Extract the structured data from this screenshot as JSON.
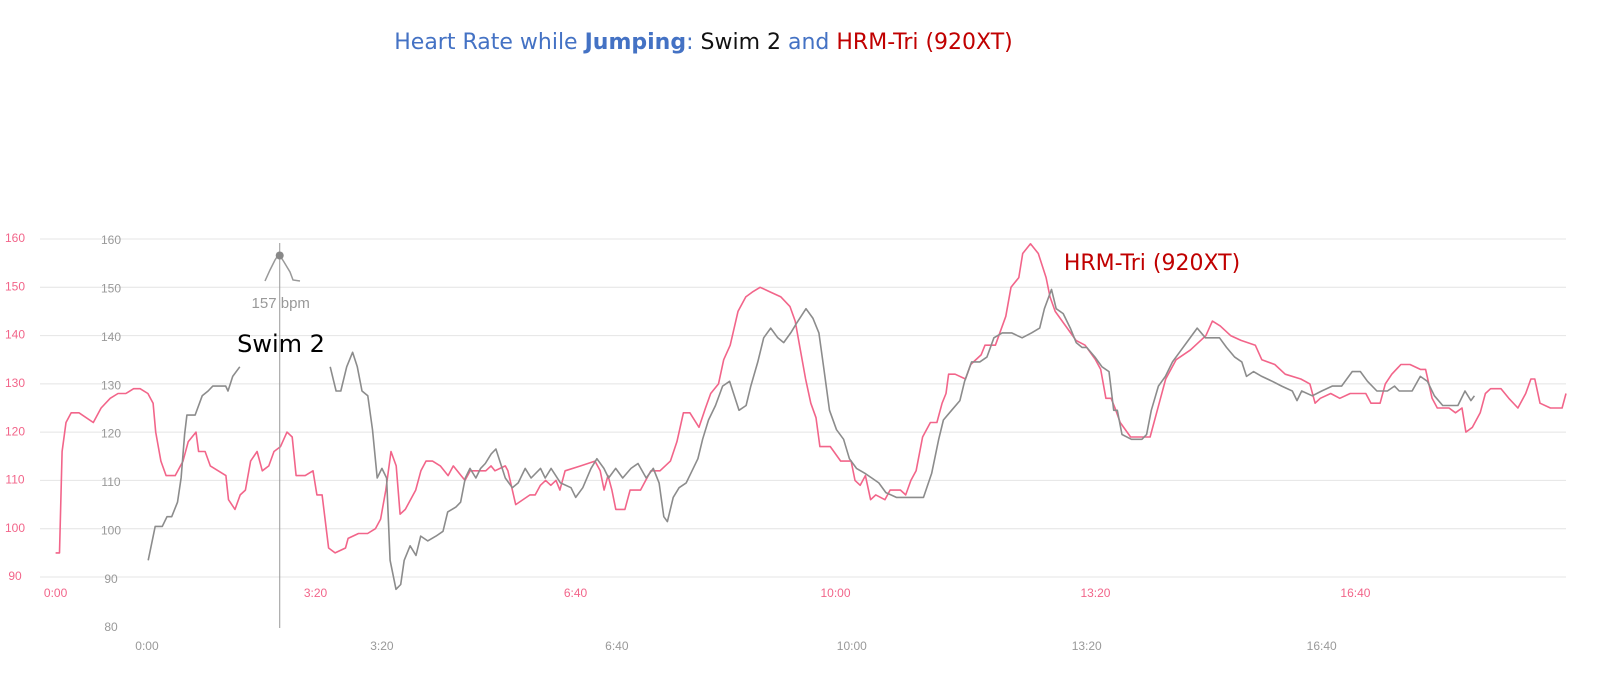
{
  "title": [
    "Heart Rate while",
    "Jumping",
    ":",
    "Swim 2",
    "and",
    "HRM-Tri (920XT)"
  ],
  "chart_data": [
    {
      "type": "line",
      "grid": true,
      "xlim": [
        -12,
        1162
      ],
      "ylim": [
        90,
        160
      ],
      "xticks": [
        {
          "value": 0,
          "label": "0:00"
        },
        {
          "value": 200,
          "label": "3:20"
        },
        {
          "value": 400,
          "label": "6:40"
        },
        {
          "value": 600,
          "label": "10:00"
        },
        {
          "value": 800,
          "label": "13:20"
        },
        {
          "value": 1000,
          "label": "16:40"
        }
      ],
      "yticks": [
        90,
        100,
        110,
        120,
        130,
        140,
        150,
        160
      ],
      "x": [
        0,
        3,
        5,
        8,
        12,
        18,
        29,
        35,
        42,
        48,
        54,
        60,
        65,
        71,
        75,
        77,
        81,
        85,
        92,
        98,
        102,
        108,
        110,
        115,
        119,
        131,
        133,
        138,
        142,
        146,
        150,
        155,
        159,
        164,
        168,
        173,
        178,
        182,
        185,
        192,
        198,
        201,
        205,
        210,
        215,
        223,
        225,
        233,
        240,
        246,
        250,
        254,
        258,
        262,
        265,
        269,
        277,
        281,
        285,
        290,
        296,
        302,
        306,
        312,
        315,
        319,
        325,
        331,
        335,
        338,
        346,
        348,
        354,
        365,
        369,
        373,
        377,
        381,
        385,
        388,
        392,
        404,
        415,
        419,
        422,
        425,
        428,
        431,
        438,
        442,
        450,
        454,
        458,
        462,
        465,
        473,
        478,
        483,
        488,
        495,
        500,
        504,
        510,
        514,
        519,
        525,
        531,
        536,
        542,
        550,
        558,
        565,
        569,
        573,
        577,
        581,
        585,
        588,
        596,
        604,
        612,
        615,
        619,
        623,
        627,
        631,
        638,
        642,
        650,
        654,
        658,
        662,
        667,
        673,
        678,
        682,
        685,
        687,
        692,
        700,
        704,
        712,
        715,
        723,
        727,
        731,
        735,
        741,
        744,
        750,
        756,
        762,
        765,
        769,
        777,
        785,
        792,
        800,
        804,
        808,
        812,
        815,
        819,
        827,
        838,
        842,
        850,
        854,
        862,
        873,
        881,
        885,
        890,
        896,
        904,
        912,
        923,
        928,
        938,
        946,
        958,
        965,
        969,
        973,
        981,
        988,
        996,
        1008,
        1012,
        1019,
        1023,
        1028,
        1035,
        1042,
        1050,
        1054,
        1059,
        1063,
        1072,
        1077,
        1082,
        1085,
        1090,
        1096,
        1100,
        1104,
        1112,
        1118,
        1125,
        1131,
        1135,
        1138,
        1142,
        1150,
        1159,
        1162
      ],
      "series": [
        {
          "name": "HRM-Tri (920XT)",
          "color": "#f2658a",
          "values": [
            95,
            95,
            116,
            122,
            124,
            124,
            122,
            125,
            127,
            128,
            128,
            129,
            129,
            128,
            126,
            120,
            114,
            111,
            111,
            114,
            118,
            120,
            116,
            116,
            113,
            111,
            106,
            104,
            107,
            108,
            114,
            116,
            112,
            113,
            116,
            117,
            120,
            119,
            111,
            111,
            112,
            107,
            107,
            96,
            95,
            96,
            98,
            99,
            99,
            100,
            102,
            108,
            116,
            113,
            103,
            104,
            108,
            112,
            114,
            114,
            113,
            111,
            113,
            111,
            110,
            112,
            112,
            112,
            113,
            112,
            113,
            112,
            105,
            107,
            107,
            109,
            110,
            109,
            110,
            108,
            112,
            113,
            114,
            112,
            108,
            111,
            108,
            104,
            104,
            108,
            108,
            110,
            112,
            112,
            112,
            114,
            118,
            124,
            124,
            121,
            125,
            128,
            130,
            135,
            138,
            145,
            148,
            149,
            150,
            149,
            148,
            146,
            143,
            137,
            131,
            126,
            123,
            117,
            117,
            114,
            114,
            110,
            109,
            111,
            106,
            107,
            106,
            108,
            108,
            107,
            110,
            112,
            119,
            122,
            122,
            126,
            128,
            132,
            132,
            131,
            134,
            136,
            138,
            138,
            141,
            144,
            150,
            152,
            157,
            159,
            157,
            152,
            148,
            145,
            142,
            139,
            138,
            135,
            133,
            127,
            127,
            125,
            122,
            119,
            119,
            119,
            127,
            131,
            135,
            137,
            139,
            140,
            143,
            142,
            140,
            139,
            138,
            135,
            134,
            132,
            131,
            130,
            126,
            127,
            128,
            127,
            128,
            128,
            126,
            126,
            130,
            132,
            134,
            134,
            133,
            133,
            127,
            125,
            125,
            124,
            125,
            120,
            121,
            124,
            128,
            129,
            129,
            127,
            125,
            128,
            131,
            131,
            126,
            125,
            125,
            128
          ]
        }
      ]
    },
    {
      "type": "line",
      "grid": false,
      "xlim": [
        -40,
        1208
      ],
      "ylim": [
        80,
        160
      ],
      "xticks": [
        {
          "value": 0,
          "label": "0:00"
        },
        {
          "value": 200,
          "label": "3:20"
        },
        {
          "value": 400,
          "label": "6:40"
        },
        {
          "value": 600,
          "label": "10:00"
        },
        {
          "value": 800,
          "label": "13:20"
        },
        {
          "value": 1000,
          "label": "16:40"
        }
      ],
      "yticks": [
        80,
        90,
        100,
        110,
        120,
        130,
        140,
        150,
        160
      ],
      "tooltip": {
        "x": 113,
        "value": 157,
        "label": "157 bpm"
      },
      "x": [
        1,
        7,
        13,
        17,
        21,
        26,
        29,
        32,
        34,
        41,
        47,
        52,
        56,
        67,
        69,
        73,
        79,
        117,
        156,
        161,
        165,
        170,
        175,
        179,
        183,
        188,
        192,
        196,
        200,
        204,
        207,
        212,
        216,
        219,
        224,
        229,
        233,
        239,
        246,
        252,
        256,
        263,
        267,
        271,
        275,
        280,
        284,
        288,
        293,
        297,
        301,
        305,
        311,
        316,
        322,
        327,
        335,
        339,
        344,
        352,
        361,
        365,
        371,
        378,
        383,
        389,
        393,
        399,
        405,
        412,
        418,
        425,
        431,
        436,
        440,
        443,
        448,
        453,
        459,
        463,
        469,
        473,
        478,
        484,
        490,
        496,
        500,
        504,
        510,
        514,
        520,
        525,
        531,
        537,
        542,
        548,
        553,
        561,
        567,
        572,
        576,
        581,
        587,
        593,
        598,
        604,
        611,
        617,
        623,
        629,
        638,
        646,
        655,
        661,
        668,
        674,
        678,
        685,
        692,
        696,
        702,
        709,
        715,
        721,
        728,
        736,
        745,
        753,
        760,
        764,
        770,
        774,
        780,
        786,
        791,
        796,
        800,
        807,
        813,
        819,
        823,
        826,
        830,
        838,
        847,
        851,
        855,
        861,
        867,
        873,
        879,
        885,
        894,
        901,
        907,
        913,
        919,
        926,
        932,
        936,
        942,
        949,
        958,
        966,
        975,
        979,
        983,
        992,
        1000,
        1009,
        1017,
        1026,
        1033,
        1039,
        1047,
        1056,
        1062,
        1066,
        1077,
        1084,
        1090,
        1096,
        1103,
        1109,
        1116,
        1122,
        1127,
        1130
      ],
      "series": [
        {
          "name": "Swim 2",
          "color": "#8c8c8c",
          "values": [
            94,
            101,
            101,
            103,
            103,
            106,
            111,
            120,
            124,
            124,
            128,
            129,
            130,
            130,
            129,
            132,
            134,
            null,
            134,
            129,
            129,
            134,
            137,
            134,
            129,
            128,
            121,
            111,
            113,
            111,
            94,
            88,
            89,
            94,
            97,
            95,
            99,
            98,
            99,
            100,
            104,
            105,
            106,
            111,
            113,
            111,
            113,
            114,
            116,
            117,
            114,
            111,
            109,
            110,
            113,
            111,
            113,
            111,
            113,
            110,
            109,
            107,
            109,
            113,
            115,
            113,
            111,
            113,
            111,
            113,
            114,
            111,
            113,
            110,
            103,
            102,
            107,
            109,
            110,
            112,
            115,
            119,
            123,
            126,
            130,
            131,
            128,
            125,
            126,
            130,
            135,
            140,
            142,
            140,
            139,
            141,
            143,
            146,
            144,
            141,
            134,
            125,
            121,
            119,
            115,
            113,
            112,
            111,
            110,
            108,
            107,
            107,
            107,
            107,
            112,
            119,
            123,
            125,
            127,
            131,
            135,
            135,
            136,
            140,
            141,
            141,
            140,
            141,
            142,
            146,
            150,
            146,
            145,
            142,
            139,
            138,
            138,
            136,
            134,
            133,
            125,
            125,
            120,
            119,
            119,
            120,
            125,
            130,
            132,
            135,
            137,
            139,
            142,
            140,
            140,
            140,
            138,
            136,
            135,
            132,
            133,
            132,
            131,
            130,
            129,
            127,
            129,
            128,
            129,
            130,
            130,
            133,
            133,
            131,
            129,
            129,
            130,
            129,
            129,
            132,
            131,
            128,
            126,
            126,
            126,
            129,
            127,
            128
          ]
        }
      ]
    }
  ]
}
